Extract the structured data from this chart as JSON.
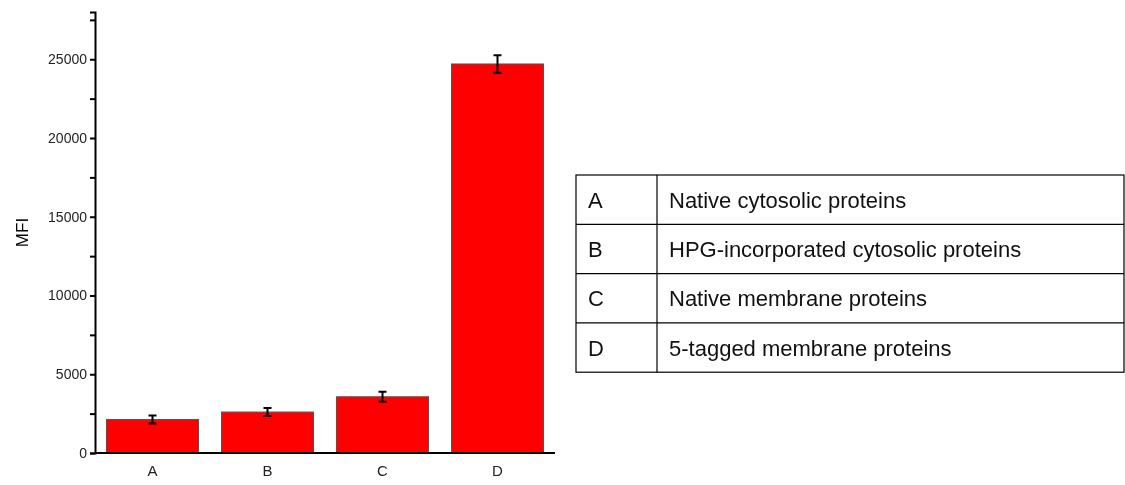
{
  "chart_data": [
    {
      "type": "bar",
      "ylabel": "MFI",
      "categories": [
        "A",
        "B",
        "C",
        "D"
      ],
      "values": [
        2130,
        2600,
        3570,
        24700
      ],
      "errors": [
        250,
        250,
        320,
        560
      ],
      "color": "#ff0000",
      "ylim": [
        0,
        28000
      ],
      "yticks": [
        0,
        {
          "value": 2500,
          "label": null
        },
        5000,
        {
          "value": 7500,
          "label": null
        },
        10000,
        {
          "value": 12500,
          "label": null
        },
        15000,
        {
          "value": 17500,
          "label": null
        },
        20000,
        {
          "value": 22500,
          "label": null
        },
        25000,
        {
          "value": 27500,
          "label": null
        }
      ],
      "grid": false
    },
    {
      "type": "other",
      "annotations": [
        "A",
        "Native cytosolic proteins",
        "B",
        "HPG-incorporated cytosolic proteins",
        "C",
        "Native membrane proteins",
        "D",
        "5-tagged membrane proteins"
      ]
    }
  ]
}
